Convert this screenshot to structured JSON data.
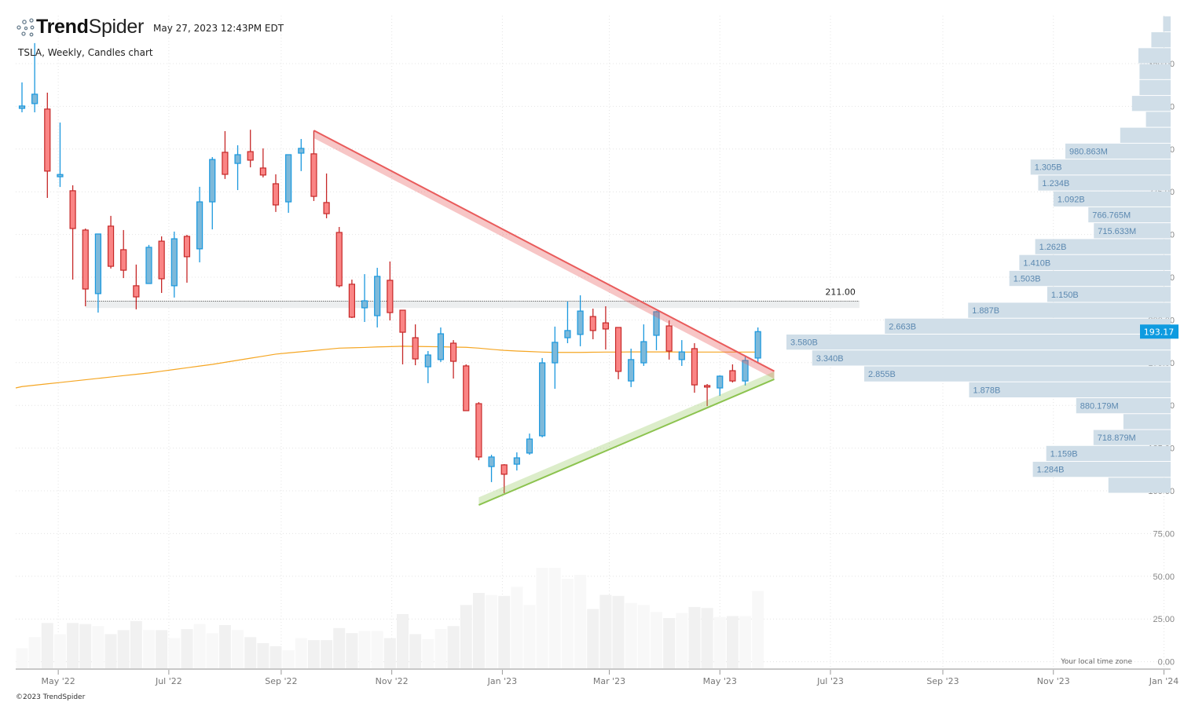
{
  "header": {
    "brand_bold": "Trend",
    "brand_light": "Spider",
    "timestamp": "May 27, 2023 12:43PM EDT",
    "subtitle": "TSLA, Weekly, Candles chart"
  },
  "footer": {
    "copyright": "©2023 TrendSpider",
    "timezone_note": "Your local time zone"
  },
  "colors": {
    "up_fill": "#7db9da",
    "up_stroke": "#1a98de",
    "down_fill": "#fa8585",
    "down_stroke": "#c62828",
    "volume_up": "#f8f8f8",
    "volume_down": "#f1f1f1",
    "moving_average": "#f5a623",
    "profile_fill": "#d0dee8",
    "profile_label": "#5b88b0",
    "last_price_bg": "#0e9be0",
    "resistance": "#e95b5b",
    "support": "#8cc34f"
  },
  "chart_data": {
    "type": "candlestick",
    "symbol": "TSLA",
    "interval": "Weekly",
    "grid": true,
    "y_axis": {
      "range": [
        0,
        360
      ],
      "ticks": [
        "0.00",
        "25.00",
        "50.00",
        "75.00",
        "100.00",
        "125.00",
        "150.00",
        "175.00",
        "200.00",
        "225.00",
        "250.00",
        "275.00",
        "300.00",
        "325.00",
        "350.00"
      ]
    },
    "x_axis": {
      "ticks": [
        {
          "date": "2022-05-01",
          "label": "May '22"
        },
        {
          "date": "2022-07-01",
          "label": "Jul '22"
        },
        {
          "date": "2022-09-01",
          "label": "Sep '22"
        },
        {
          "date": "2022-11-01",
          "label": "Nov '22"
        },
        {
          "date": "2023-01-01",
          "label": "Jan '23"
        },
        {
          "date": "2023-03-01",
          "label": "Mar '23"
        },
        {
          "date": "2023-05-01",
          "label": "May '23"
        },
        {
          "date": "2023-07-01",
          "label": "Jul '23"
        },
        {
          "date": "2023-09-01",
          "label": "Sep '23"
        },
        {
          "date": "2023-11-01",
          "label": "Nov '23"
        },
        {
          "date": "2024-01-01",
          "label": "Jan '24"
        }
      ]
    },
    "candles_columns": [
      "date",
      "open",
      "high",
      "low",
      "close",
      "relative_volume"
    ],
    "candles": [
      [
        "2022-04-11",
        323.8,
        339.0,
        321.5,
        325.2,
        20
      ],
      [
        "2022-04-18",
        326.6,
        362.0,
        321.5,
        332.1,
        31
      ],
      [
        "2022-04-25",
        323.4,
        333.0,
        271.4,
        287.1,
        45
      ],
      [
        "2022-05-02",
        283.8,
        315.5,
        277.8,
        285.1,
        34
      ],
      [
        "2022-05-09",
        275.6,
        278.8,
        223.6,
        253.5,
        45
      ],
      [
        "2022-05-16",
        252.6,
        253.5,
        208.0,
        218.1,
        44
      ],
      [
        "2022-05-23",
        215.4,
        250.3,
        204.3,
        250.3,
        42
      ],
      [
        "2022-05-30",
        254.9,
        260.9,
        230.1,
        231.4,
        34
      ],
      [
        "2022-06-06",
        241.1,
        252.6,
        224.5,
        229.1,
        38
      ],
      [
        "2022-06-13",
        220.0,
        232.4,
        206.2,
        213.5,
        47
      ],
      [
        "2022-06-20",
        221.3,
        243.9,
        221.3,
        242.5,
        38
      ],
      [
        "2022-06-27",
        246.1,
        248.9,
        215.8,
        224.1,
        38
      ],
      [
        "2022-07-04",
        220.0,
        251.7,
        213.1,
        247.5,
        30
      ],
      [
        "2022-07-11",
        248.9,
        249.8,
        221.8,
        237.0,
        39
      ],
      [
        "2022-07-18",
        241.6,
        277.9,
        233.7,
        269.1,
        44
      ],
      [
        "2022-07-25",
        269.1,
        295.3,
        253.0,
        293.9,
        35
      ],
      [
        "2022-08-01",
        298.1,
        310.5,
        282.5,
        285.2,
        43
      ],
      [
        "2022-08-08",
        291.6,
        302.2,
        276.0,
        296.7,
        38
      ],
      [
        "2022-08-15",
        298.5,
        311.3,
        289.3,
        293.5,
        31
      ],
      [
        "2022-08-22",
        288.9,
        300.4,
        283.4,
        284.8,
        25
      ],
      [
        "2022-08-29",
        279.7,
        285.2,
        263.2,
        267.3,
        22
      ],
      [
        "2022-09-05",
        269.1,
        296.7,
        262.7,
        296.7,
        18
      ],
      [
        "2022-09-12",
        297.6,
        305.9,
        287.1,
        300.4,
        30
      ],
      [
        "2022-09-19",
        297.2,
        310.9,
        269.6,
        272.3,
        28
      ],
      [
        "2022-09-26",
        268.7,
        285.7,
        259.5,
        262.2,
        28
      ],
      [
        "2022-10-03",
        251.2,
        254.4,
        219.0,
        220.0,
        40
      ],
      [
        "2022-10-10",
        220.9,
        223.6,
        201.1,
        201.6,
        35
      ],
      [
        "2022-10-17",
        207.1,
        226.8,
        198.8,
        211.2,
        37
      ],
      [
        "2022-10-24",
        202.5,
        230.5,
        195.6,
        225.5,
        37
      ],
      [
        "2022-10-31",
        223.2,
        234.2,
        199.7,
        204.3,
        30
      ],
      [
        "2022-11-07",
        205.7,
        205.7,
        174.0,
        192.8,
        54
      ],
      [
        "2022-11-14",
        189.6,
        197.4,
        173.5,
        177.2,
        34
      ],
      [
        "2022-11-21",
        172.6,
        181.8,
        163.0,
        179.5,
        29
      ],
      [
        "2022-11-28",
        176.8,
        195.6,
        175.4,
        191.9,
        39
      ],
      [
        "2022-12-05",
        186.4,
        188.2,
        165.7,
        175.8,
        42
      ],
      [
        "2022-12-12",
        173.1,
        174.0,
        146.9,
        146.9,
        63
      ],
      [
        "2022-12-19",
        151.0,
        151.9,
        117.9,
        119.8,
        75
      ],
      [
        "2022-12-26",
        114.2,
        121.1,
        105.1,
        119.8,
        73
      ],
      [
        "2023-01-02",
        115.2,
        115.6,
        98.6,
        109.7,
        72
      ],
      [
        "2023-01-09",
        115.6,
        122.5,
        111.9,
        119.3,
        81
      ],
      [
        "2023-01-16",
        122.1,
        133.5,
        121.1,
        130.3,
        63
      ],
      [
        "2023-01-23",
        132.2,
        177.7,
        131.3,
        174.9,
        100
      ],
      [
        "2023-01-30",
        174.9,
        196.1,
        159.7,
        186.9,
        100
      ],
      [
        "2023-02-06",
        189.6,
        210.8,
        186.4,
        193.8,
        89
      ],
      [
        "2023-02-13",
        191.5,
        214.4,
        184.6,
        205.2,
        93
      ],
      [
        "2023-02-20",
        202.0,
        206.6,
        188.7,
        193.8,
        59
      ],
      [
        "2023-02-27",
        198.3,
        208.0,
        182.7,
        194.7,
        73
      ],
      [
        "2023-03-06",
        195.6,
        195.6,
        165.3,
        169.9,
        72
      ],
      [
        "2023-03-13",
        164.3,
        183.2,
        160.7,
        176.8,
        65
      ],
      [
        "2023-03-20",
        174.9,
        197.4,
        173.1,
        187.3,
        63
      ],
      [
        "2023-03-27",
        191.0,
        205.2,
        182.3,
        204.8,
        56
      ],
      [
        "2023-04-03",
        196.5,
        199.7,
        176.8,
        181.8,
        50
      ],
      [
        "2023-04-10",
        176.8,
        188.2,
        173.1,
        181.3,
        55
      ],
      [
        "2023-04-17",
        183.2,
        186.4,
        157.4,
        162.0,
        61
      ],
      [
        "2023-04-24",
        161.6,
        162.5,
        149.6,
        160.7,
        60
      ],
      [
        "2023-05-01",
        160.2,
        167.6,
        155.6,
        167.1,
        51
      ],
      [
        "2023-05-08",
        170.3,
        174.0,
        163.4,
        164.3,
        52
      ],
      [
        "2023-05-15",
        164.3,
        178.6,
        161.6,
        176.3,
        52
      ],
      [
        "2023-05-22",
        177.7,
        195.6,
        174.9,
        193.17,
        77
      ]
    ],
    "moving_average": [
      161,
      161.8,
      162.6,
      163.4,
      164.2,
      165,
      165.8,
      166.6,
      167.4,
      168.2,
      169,
      170,
      171,
      172,
      173,
      174,
      175.2,
      176.4,
      177.6,
      178.8,
      180,
      180.7,
      181.4,
      182.1,
      182.8,
      183.5,
      183.7,
      183.9,
      184.2,
      184.4,
      184.6,
      184.5,
      184.4,
      184.3,
      184.1,
      184,
      183.5,
      182.8,
      182.2,
      181.8,
      181.5,
      181.2,
      181,
      181,
      181,
      181.1,
      181.2,
      181.2,
      181.3,
      181.3,
      181.3,
      181.3,
      181.2,
      181.2,
      181.2,
      181.2,
      181.2,
      181.2,
      181.2
    ],
    "last_price": "193.17",
    "level": {
      "label": "211.00",
      "price": 211.0,
      "zone_low": 207.0,
      "from": "2022-05-16",
      "to": "2023-07-17"
    },
    "trendlines": [
      {
        "kind": "resistance",
        "from": {
          "date": "2022-09-19",
          "price": 310.9
        },
        "to": {
          "date": "2023-05-31",
          "price": 170.0
        },
        "band": 4.5
      },
      {
        "kind": "support",
        "from": {
          "date": "2022-12-19",
          "price": 91.7
        },
        "to": {
          "date": "2023-05-31",
          "price": 165.3
        },
        "band": 4.5
      }
    ],
    "volume_profile": {
      "price_start": 98.6,
      "bin_size": 9.31,
      "bins_billions": [
        0.58,
        1.284,
        1.159,
        0.718879,
        0.44,
        0.880179,
        1.878,
        2.855,
        3.34,
        3.58,
        2.663,
        1.887,
        1.15,
        1.503,
        1.41,
        1.262,
        0.715633,
        0.766765,
        1.092,
        1.234,
        1.305,
        0.980863,
        0.47,
        0.23,
        0.36,
        0.29,
        0.29,
        0.3,
        0.18,
        0.07
      ],
      "labels": [
        null,
        "1.284B",
        "1.159B",
        "718.879M",
        null,
        "880.179M",
        "1.878B",
        "2.855B",
        "3.340B",
        "3.580B",
        "2.663B",
        "1.887B",
        "1.150B",
        "1.503B",
        "1.410B",
        "1.262B",
        "715.633M",
        "766.765M",
        "1.092B",
        "1.234B",
        "1.305B",
        "980.863M",
        null,
        null,
        null,
        null,
        null,
        null,
        null,
        null
      ]
    }
  }
}
